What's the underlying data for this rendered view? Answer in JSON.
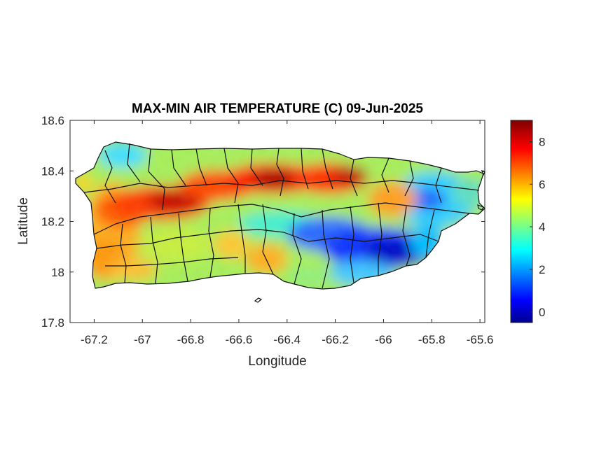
{
  "title": "MAX-MIN AIR TEMPERATURE (C) 09-Jun-2025",
  "map": {
    "region": "Puerto Rico",
    "field": "max-min air temperature difference",
    "units": "C",
    "date": "09-Jun-2025",
    "xlabel": "Longitude",
    "ylabel": "Latitude",
    "xlim": [
      -67.3,
      -65.58
    ],
    "ylim": [
      17.8,
      18.6
    ],
    "x_ticks": [
      "-67.2",
      "-67",
      "-66.8",
      "-66.6",
      "-66.4",
      "-66.2",
      "-66",
      "-65.8",
      "-65.6"
    ],
    "x_tick_values": [
      -67.2,
      -67.0,
      -66.8,
      -66.6,
      -66.4,
      -66.2,
      -66.0,
      -65.8,
      -65.6
    ],
    "y_ticks": [
      "18.6",
      "18.4",
      "18.2",
      "18",
      "17.8"
    ],
    "y_tick_values": [
      18.6,
      18.4,
      18.2,
      18.0,
      17.8
    ],
    "colormap": "jet",
    "colorbar": {
      "range": [
        -0.5,
        9.0
      ],
      "ticks": [
        "8",
        "6",
        "4",
        "2",
        "0"
      ],
      "tick_values": [
        8,
        6,
        4,
        2,
        0
      ]
    },
    "regions_of_note": {
      "hot_band": "north-central interior around -66.45, 18.35 (~8-9 C)",
      "cool_band": "southeast interior around -65.95, 18.07 (~0 C)"
    }
  }
}
